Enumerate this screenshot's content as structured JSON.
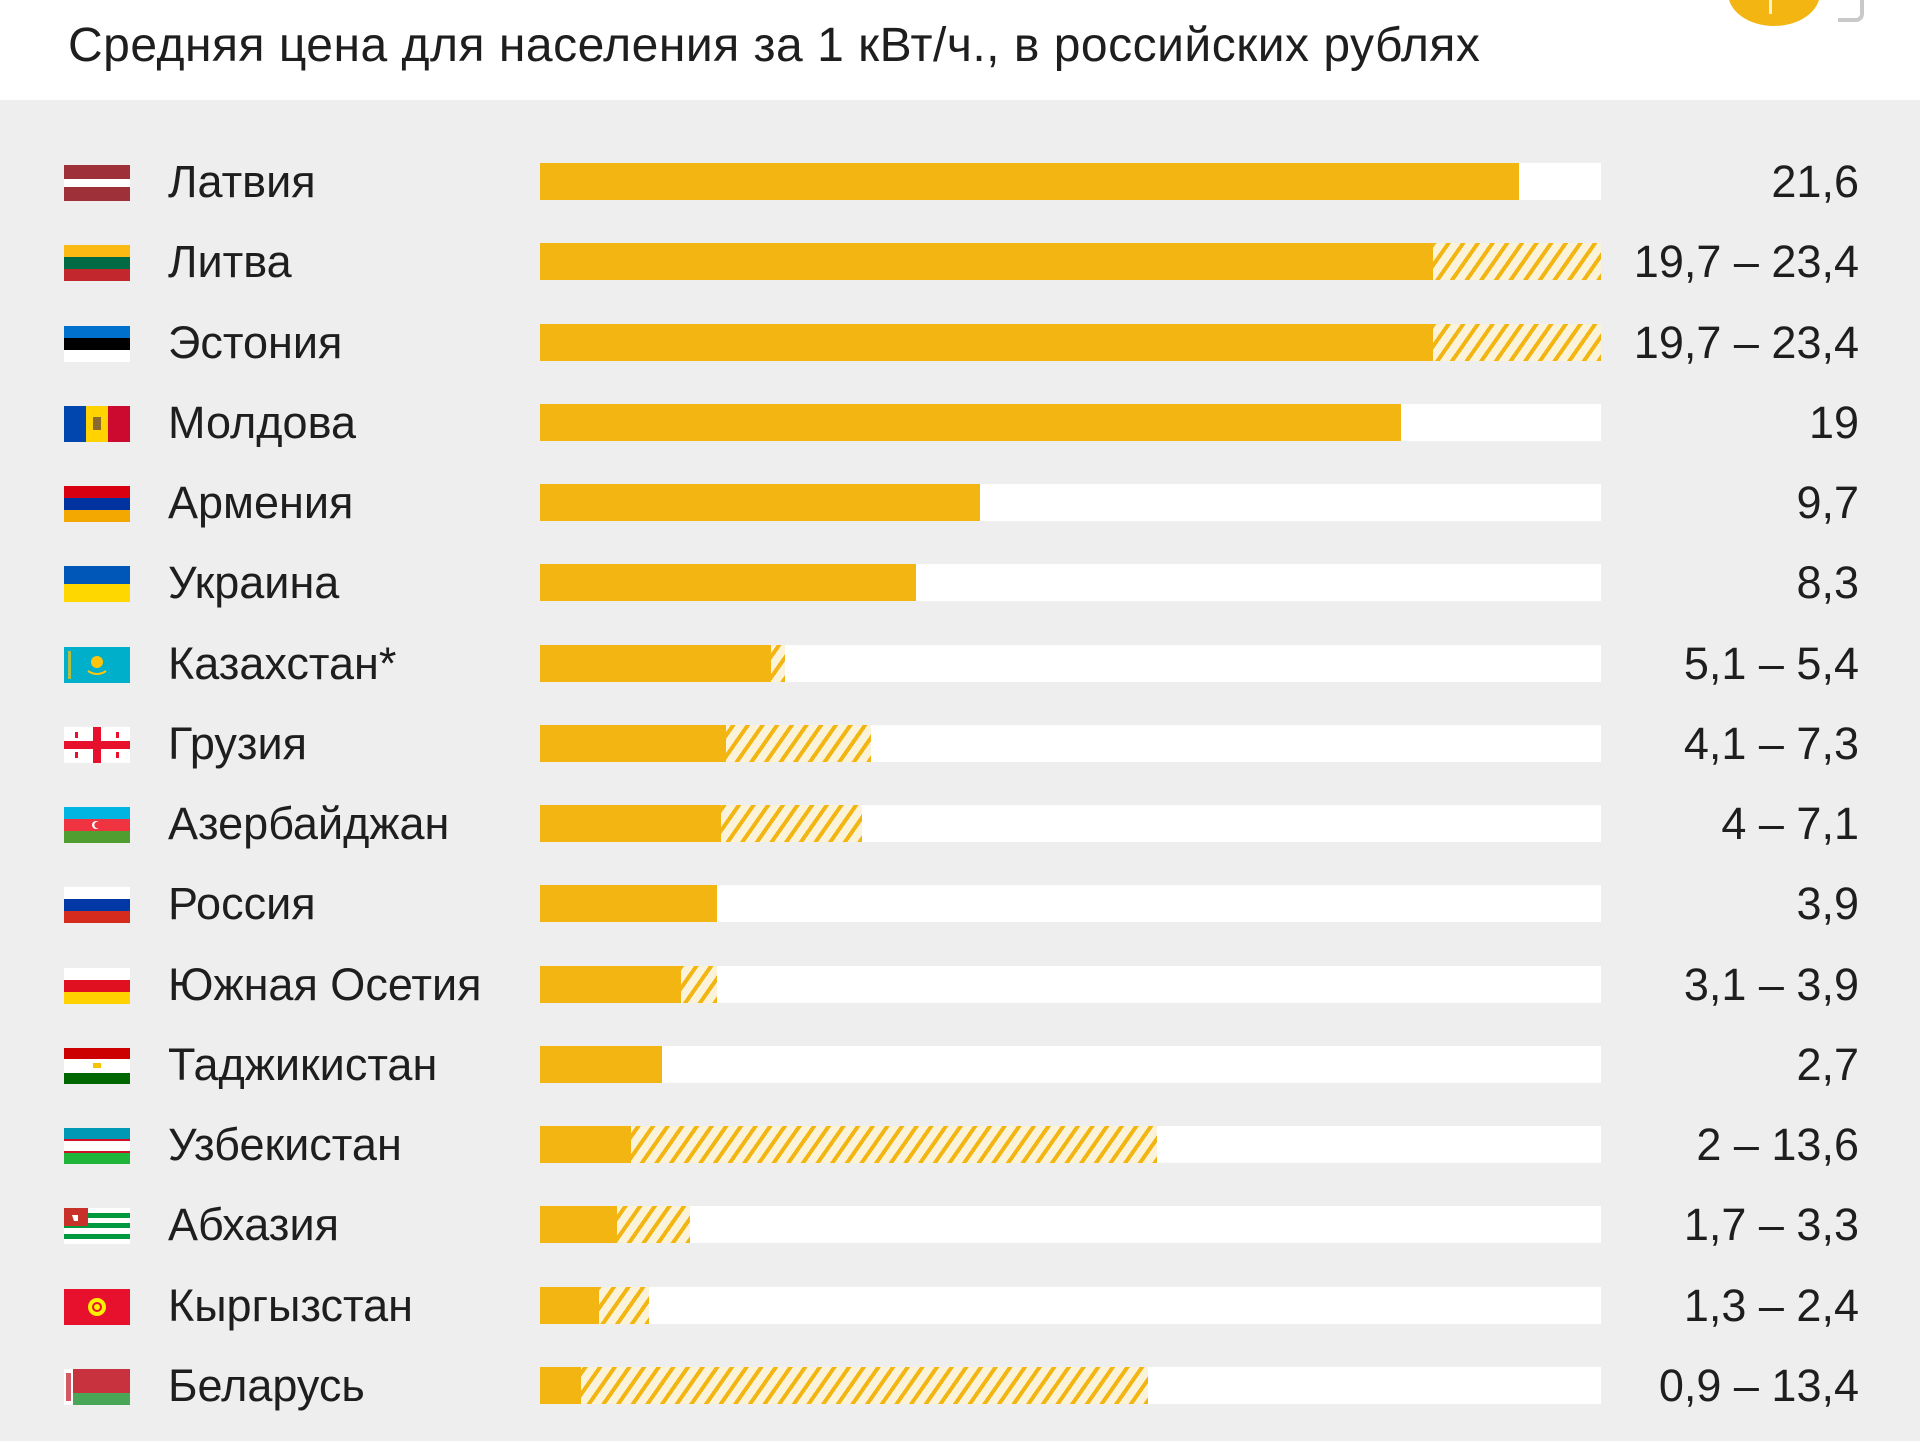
{
  "header": {
    "title": "Средняя цена для населения за 1 кВт/ч., в российских рублях"
  },
  "chart_data": {
    "type": "bar",
    "orientation": "horizontal",
    "title": "Средняя цена для населения за 1 кВт/ч., в российских рублях",
    "xlim": [
      0,
      23.4
    ],
    "colors": {
      "solid": "#f3b512",
      "range": "#f3b512",
      "track": "#ffffff"
    },
    "rows": [
      {
        "country": "Латвия",
        "min": 21.6,
        "max": 21.6,
        "label": "21,6",
        "flag": "flag-latvia"
      },
      {
        "country": "Литва",
        "min": 19.7,
        "max": 23.4,
        "label": "19,7 – 23,4",
        "flag": "flag-lithuania"
      },
      {
        "country": "Эстония",
        "min": 19.7,
        "max": 23.4,
        "label": "19,7 – 23,4",
        "flag": "flag-estonia"
      },
      {
        "country": "Молдова",
        "min": 19,
        "max": 19,
        "label": "19",
        "flag": "flag-moldova"
      },
      {
        "country": "Армения",
        "min": 9.7,
        "max": 9.7,
        "label": "9,7",
        "flag": "flag-armenia"
      },
      {
        "country": "Украина",
        "min": 8.3,
        "max": 8.3,
        "label": "8,3",
        "flag": "flag-ukraine"
      },
      {
        "country": "Казахстан*",
        "min": 5.1,
        "max": 5.4,
        "label": "5,1 – 5,4",
        "flag": "flag-kazakhstan"
      },
      {
        "country": "Грузия",
        "min": 4.1,
        "max": 7.3,
        "label": "4,1 – 7,3",
        "flag": "flag-georgia"
      },
      {
        "country": "Азербайджан",
        "min": 4,
        "max": 7.1,
        "label": "4 – 7,1",
        "flag": "flag-azerbaijan"
      },
      {
        "country": "Россия",
        "min": 3.9,
        "max": 3.9,
        "label": "3,9",
        "flag": "flag-russia"
      },
      {
        "country": "Южная Осетия",
        "min": 3.1,
        "max": 3.9,
        "label": "3,1 – 3,9",
        "flag": "flag-south-ossetia"
      },
      {
        "country": "Таджикистан",
        "min": 2.7,
        "max": 2.7,
        "label": "2,7",
        "flag": "flag-tajikistan"
      },
      {
        "country": "Узбекистан",
        "min": 2,
        "max": 13.6,
        "label": "2 – 13,6",
        "flag": "flag-uzbekistan"
      },
      {
        "country": "Абхазия",
        "min": 1.7,
        "max": 3.3,
        "label": "1,7 – 3,3",
        "flag": "flag-abkhazia"
      },
      {
        "country": "Кыргызстан",
        "min": 1.3,
        "max": 2.4,
        "label": "1,3 – 2,4",
        "flag": "flag-kyrgyzstan"
      },
      {
        "country": "Беларусь",
        "min": 0.9,
        "max": 13.4,
        "label": "0,9 – 13,4",
        "flag": "flag-belarus"
      }
    ]
  }
}
